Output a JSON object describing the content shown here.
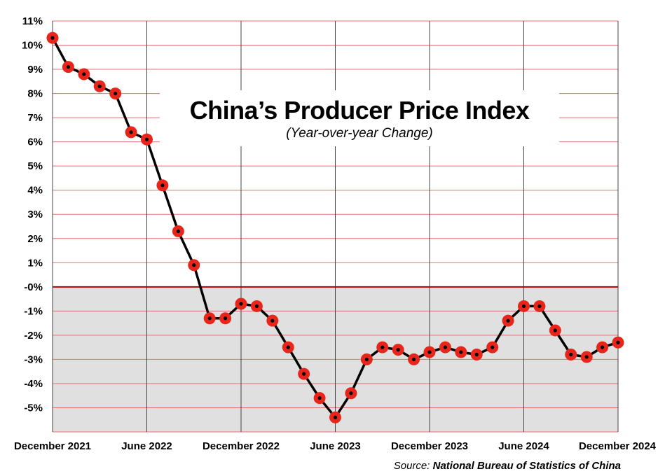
{
  "chart_data": {
    "type": "line",
    "title": "China’s Producer Price Index",
    "subtitle": "(Year-over-year Change)",
    "xlabel": "",
    "ylabel": "",
    "ylim": [
      -6,
      11
    ],
    "y_tick_labels": [
      "11%",
      "10%",
      "9%",
      "8%",
      "7%",
      "6%",
      "5%",
      "4%",
      "3%",
      "2%",
      "1%",
      "-0%",
      "-1%",
      "-2%",
      "-3%",
      "-4%",
      "-5%"
    ],
    "x_tick_labels": [
      "December 2021",
      "June 2022",
      "December 2022",
      "June 2023",
      "December 2023",
      "June 2024",
      "December 2024"
    ],
    "x": [
      "Dec 2021",
      "Jan 2022",
      "Feb 2022",
      "Mar 2022",
      "Apr 2022",
      "May 2022",
      "Jun 2022",
      "Jul 2022",
      "Aug 2022",
      "Sep 2022",
      "Oct 2022",
      "Nov 2022",
      "Dec 2022",
      "Jan 2023",
      "Feb 2023",
      "Mar 2023",
      "Apr 2023",
      "May 2023",
      "Jun 2023",
      "Jul 2023",
      "Aug 2023",
      "Sep 2023",
      "Oct 2023",
      "Nov 2023",
      "Dec 2023",
      "Jan 2024",
      "Feb 2024",
      "Mar 2024",
      "Apr 2024",
      "May 2024",
      "Jun 2024",
      "Jul 2024",
      "Aug 2024",
      "Sep 2024",
      "Oct 2024",
      "Nov 2024",
      "Dec 2024"
    ],
    "series": [
      {
        "values": [
          10.3,
          9.1,
          8.8,
          8.3,
          8.0,
          6.4,
          6.1,
          4.2,
          2.3,
          0.9,
          -1.3,
          -1.3,
          -0.7,
          -0.8,
          -1.4,
          -2.5,
          -3.6,
          -4.6,
          -5.4,
          -4.4,
          -3.0,
          -2.5,
          -2.6,
          -3.0,
          -2.7,
          -2.5,
          -2.7,
          -2.8,
          -2.5,
          -1.4,
          -0.8,
          -0.8,
          -1.8,
          -2.8,
          -2.9,
          -2.5,
          -2.3
        ]
      }
    ],
    "negative_region_fill": "#e0e0e0",
    "gridline_color": "#e07070",
    "zero_line_color": "#b00000",
    "line_color": "#000000",
    "marker_color": "#e8251a",
    "marker_center_color": "#000000",
    "grid": true
  },
  "source": {
    "prefix": "Source:",
    "name": "National Bureau of Statistics of China"
  }
}
